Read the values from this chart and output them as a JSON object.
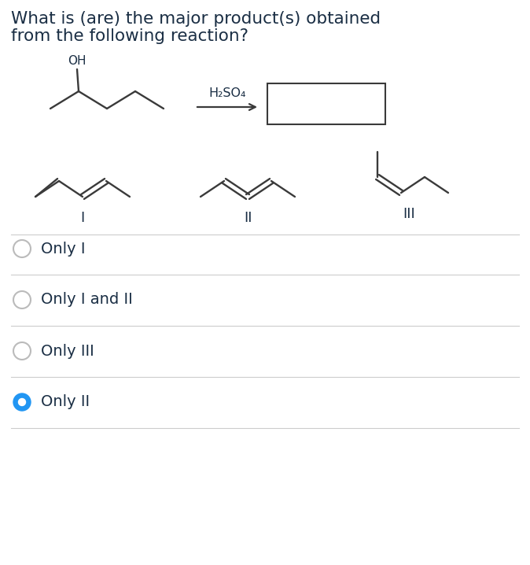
{
  "title_line1": "What is (are) the major product(s) obtained",
  "title_line2": "from the following reaction?",
  "reagent": "H₂SO₄",
  "options": [
    "Only I",
    "Only I and II",
    "Only III",
    "Only II"
  ],
  "selected_option": 3,
  "bg_color": "#ffffff",
  "text_color": "#1a2e44",
  "radio_border_color": "#bbbbbb",
  "selected_radio_color": "#2196f3",
  "divider_color": "#cccccc",
  "font_size_title": 15.5,
  "font_size_option": 14,
  "mol_line_color": "#3a3a3a",
  "arrow_color": "#3a3a3a"
}
